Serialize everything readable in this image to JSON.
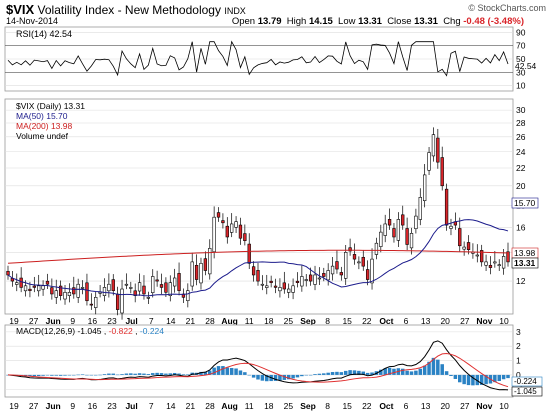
{
  "header": {
    "symbol": "$VIX",
    "name": "Volatility Index - New Methodology",
    "exchange": "INDX",
    "date": "14-Nov-2014",
    "brand": "© StockCharts.com",
    "open_label": "Open",
    "open": "13.79",
    "high_label": "High",
    "high": "14.15",
    "low_label": "Low",
    "low": "13.31",
    "close_label": "Close",
    "close": "13.31",
    "chg_label": "Chg",
    "chg": "-0.48 (-3.48%)"
  },
  "colors": {
    "up": "#ffffff",
    "down": "#d9252a",
    "outline": "#000000",
    "ma50": "#1c1c8c",
    "ma200": "#cc2020",
    "macd": "#000000",
    "signal": "#e03030",
    "hist": "#2a82c4",
    "rsi": "#000000",
    "grid": "#dddddd"
  },
  "rsi_panel": {
    "label": "RSI(14) 42.54",
    "ticks": [
      "90",
      "70",
      "50",
      "30",
      "10"
    ],
    "value_tag": "42.54"
  },
  "price_panel": {
    "legend": [
      "$VIX (Daily) 13.31",
      "MA(50) 15.70",
      "MA(200) 13.98",
      "Volume undef"
    ],
    "ticks": [
      "30",
      "28",
      "26",
      "24",
      "22",
      "20",
      "18",
      "16",
      "14",
      "12"
    ],
    "tag_ma50": "15.70",
    "tag_ma200": "13.98",
    "tag_close": "13.31"
  },
  "macd_panel": {
    "label_prefix": "MACD(12,26,9)",
    "macd": "-1.045",
    "signal": "-0.822",
    "hist": "-0.224",
    "ticks": [
      "3",
      "2",
      "1",
      "0",
      "-1"
    ],
    "tag_hist": "-0.224",
    "tag_macd": "-1.045"
  },
  "date_axis": [
    "19",
    "27",
    "Jun",
    "9",
    "16",
    "23",
    "Jul",
    "7",
    "14",
    "21",
    "28",
    "Aug",
    "11",
    "18",
    "25",
    "Sep",
    "8",
    "15",
    "22",
    "Oct",
    "6",
    "13",
    "20",
    "27",
    "Nov",
    "10"
  ],
  "chart_data": {
    "type": "candlestick",
    "title": "$VIX Volatility Index - New Methodology INDX",
    "x_range": [
      "2014-05-19",
      "2014-11-14"
    ],
    "y_range": [
      10.5,
      31
    ],
    "y_scale": "log",
    "months": [
      "Jun",
      "Jul",
      "Aug",
      "Sep",
      "Oct",
      "Nov"
    ],
    "close": [
      12.4,
      12.0,
      11.9,
      11.6,
      11.7,
      11.4,
      11.6,
      11.7,
      11.7,
      11.8,
      11.2,
      11.4,
      11.1,
      11.3,
      11.3,
      11.2,
      11.8,
      11.6,
      10.8,
      10.6,
      11.0,
      11.3,
      11.6,
      11.8,
      11.4,
      10.3,
      11.5,
      11.8,
      11.6,
      11.1,
      11.9,
      11.2,
      11.0,
      12.3,
      12.0,
      11.6,
      11.3,
      11.9,
      12.2,
      11.4,
      11.0,
      11.4,
      13.3,
      12.1,
      13.2,
      12.7,
      14.3,
      16.9,
      16.9,
      16.4,
      15.2,
      16.3,
      16.5,
      15.1,
      14.9,
      13.2,
      12.4,
      12.0,
      11.8,
      11.7,
      11.9,
      11.6,
      11.6,
      11.5,
      11.5,
      11.7,
      11.9,
      12.3,
      12.1,
      12.0,
      12.4,
      12.2,
      12.3,
      12.7,
      13.0,
      12.8,
      12.4,
      14.0,
      14.1,
      13.5,
      13.3,
      13.0,
      12.1,
      13.5,
      14.7,
      15.6,
      16.3,
      16.2,
      15.2,
      16.7,
      16.2,
      14.6,
      15.5,
      17.0,
      18.8,
      21.2,
      23.9,
      26.3,
      22.7,
      20.0,
      16.2,
      16.1,
      16.2,
      14.5,
      14.4,
      14.2,
      14.0,
      13.8,
      13.3,
      13.3,
      12.9,
      13.3,
      13.1,
      13.7,
      13.3
    ],
    "ma50_last": 15.7,
    "ma200_last": 13.98,
    "rsi_last": 42.54,
    "macd": {
      "macd_last": -1.045,
      "signal_last": -0.822,
      "hist_last": -0.224
    }
  }
}
